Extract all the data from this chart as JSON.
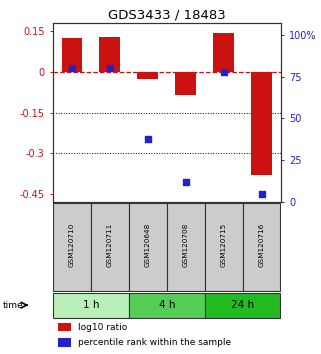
{
  "title": "GDS3433 / 18483",
  "samples": [
    "GSM120710",
    "GSM120711",
    "GSM120648",
    "GSM120708",
    "GSM120715",
    "GSM120716"
  ],
  "log10_ratio": [
    0.125,
    0.13,
    -0.025,
    -0.085,
    0.145,
    -0.38
  ],
  "percentile_rank": [
    80,
    80,
    38,
    12,
    78,
    5
  ],
  "time_groups": [
    {
      "label": "1 h",
      "start": 0,
      "end": 2,
      "color": "#b8f0b8"
    },
    {
      "label": "4 h",
      "start": 2,
      "end": 4,
      "color": "#55cc55"
    },
    {
      "label": "24 h",
      "start": 4,
      "end": 6,
      "color": "#22bb22"
    }
  ],
  "bar_color": "#cc1111",
  "dot_color": "#2222cc",
  "ylim_left": [
    -0.48,
    0.18
  ],
  "ylim_right": [
    0,
    107
  ],
  "yticks_left": [
    0.15,
    0,
    -0.15,
    -0.3,
    -0.45
  ],
  "yticks_right": [
    100,
    75,
    50,
    25,
    0
  ],
  "bg_color": "#ffffff",
  "plot_bg": "#ffffff",
  "label_log10": "log10 ratio",
  "label_pct": "percentile rank within the sample",
  "sample_box_color": "#cccccc",
  "sample_box_border": "#333333"
}
